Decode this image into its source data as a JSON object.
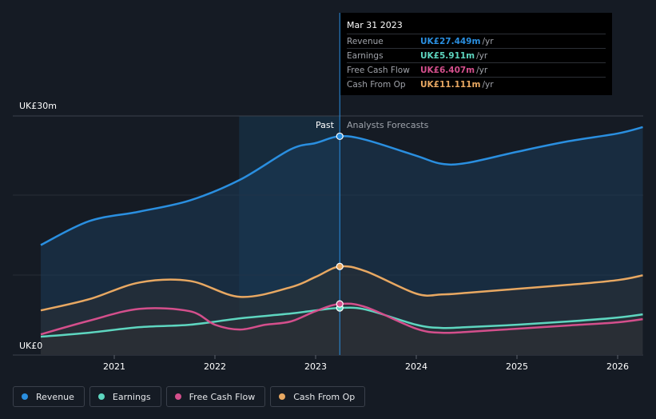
{
  "chart_data": {
    "type": "line",
    "y_axis": {
      "max_label": "UK£30m",
      "min_label": "UK£0",
      "ylim": [
        0,
        30
      ]
    },
    "x_ticks": [
      "2021",
      "2022",
      "2023",
      "2024",
      "2025",
      "2026"
    ],
    "divider_label_past": "Past",
    "divider_label_forecast": "Analysts Forecasts",
    "series": [
      {
        "name": "Revenue",
        "color": "#2a8fe0",
        "points": [
          [
            2020.27,
            13.8
          ],
          [
            2020.75,
            16.8
          ],
          [
            2021.25,
            18.0
          ],
          [
            2021.75,
            19.4
          ],
          [
            2022.25,
            22.0
          ],
          [
            2022.75,
            25.8
          ],
          [
            2023.0,
            26.6
          ],
          [
            2023.24,
            27.45
          ],
          [
            2023.5,
            27.0
          ],
          [
            2024.0,
            25.0
          ],
          [
            2024.25,
            24.0
          ],
          [
            2024.5,
            24.1
          ],
          [
            2025.0,
            25.5
          ],
          [
            2025.5,
            26.8
          ],
          [
            2026.0,
            27.8
          ],
          [
            2026.25,
            28.6
          ]
        ]
      },
      {
        "name": "Earnings",
        "color": "#5ed6c0",
        "points": [
          [
            2020.27,
            2.3
          ],
          [
            2020.75,
            2.8
          ],
          [
            2021.25,
            3.5
          ],
          [
            2021.75,
            3.8
          ],
          [
            2022.25,
            4.6
          ],
          [
            2022.75,
            5.2
          ],
          [
            2023.0,
            5.6
          ],
          [
            2023.24,
            5.91
          ],
          [
            2023.5,
            5.7
          ],
          [
            2024.0,
            3.8
          ],
          [
            2024.25,
            3.4
          ],
          [
            2024.5,
            3.5
          ],
          [
            2025.0,
            3.8
          ],
          [
            2025.5,
            4.2
          ],
          [
            2026.0,
            4.7
          ],
          [
            2026.25,
            5.1
          ]
        ]
      },
      {
        "name": "Free Cash Flow",
        "color": "#d44f8c",
        "points": [
          [
            2020.27,
            2.6
          ],
          [
            2020.75,
            4.3
          ],
          [
            2021.25,
            5.8
          ],
          [
            2021.75,
            5.5
          ],
          [
            2022.0,
            3.8
          ],
          [
            2022.25,
            3.2
          ],
          [
            2022.5,
            3.8
          ],
          [
            2022.75,
            4.2
          ],
          [
            2023.0,
            5.5
          ],
          [
            2023.24,
            6.41
          ],
          [
            2023.5,
            6.0
          ],
          [
            2024.0,
            3.3
          ],
          [
            2024.25,
            2.8
          ],
          [
            2024.5,
            2.9
          ],
          [
            2025.0,
            3.3
          ],
          [
            2025.5,
            3.7
          ],
          [
            2026.0,
            4.1
          ],
          [
            2026.25,
            4.5
          ]
        ]
      },
      {
        "name": "Cash From Op",
        "color": "#e8a862",
        "points": [
          [
            2020.27,
            5.6
          ],
          [
            2020.75,
            7.0
          ],
          [
            2021.25,
            9.1
          ],
          [
            2021.75,
            9.3
          ],
          [
            2022.25,
            7.3
          ],
          [
            2022.75,
            8.5
          ],
          [
            2023.0,
            9.8
          ],
          [
            2023.24,
            11.11
          ],
          [
            2023.5,
            10.5
          ],
          [
            2024.0,
            7.7
          ],
          [
            2024.25,
            7.6
          ],
          [
            2024.5,
            7.8
          ],
          [
            2025.0,
            8.3
          ],
          [
            2025.5,
            8.8
          ],
          [
            2026.0,
            9.4
          ],
          [
            2026.25,
            10.0
          ]
        ]
      }
    ],
    "forecast_start": 2023.24,
    "highlight_band_start": 2022.24,
    "grid": true
  },
  "tooltip": {
    "date": "Mar 31 2023",
    "rows": [
      {
        "label": "Revenue",
        "value": "UK£27.449m",
        "unit": "/yr",
        "color": "#2a8fe0"
      },
      {
        "label": "Earnings",
        "value": "UK£5.911m",
        "unit": "/yr",
        "color": "#5ed6c0"
      },
      {
        "label": "Free Cash Flow",
        "value": "UK£6.407m",
        "unit": "/yr",
        "color": "#d44f8c"
      },
      {
        "label": "Cash From Op",
        "value": "UK£11.111m",
        "unit": "/yr",
        "color": "#e8a862"
      }
    ]
  },
  "legend": [
    {
      "label": "Revenue",
      "color": "#2a8fe0"
    },
    {
      "label": "Earnings",
      "color": "#5ed6c0"
    },
    {
      "label": "Free Cash Flow",
      "color": "#d44f8c"
    },
    {
      "label": "Cash From Op",
      "color": "#e8a862"
    }
  ]
}
